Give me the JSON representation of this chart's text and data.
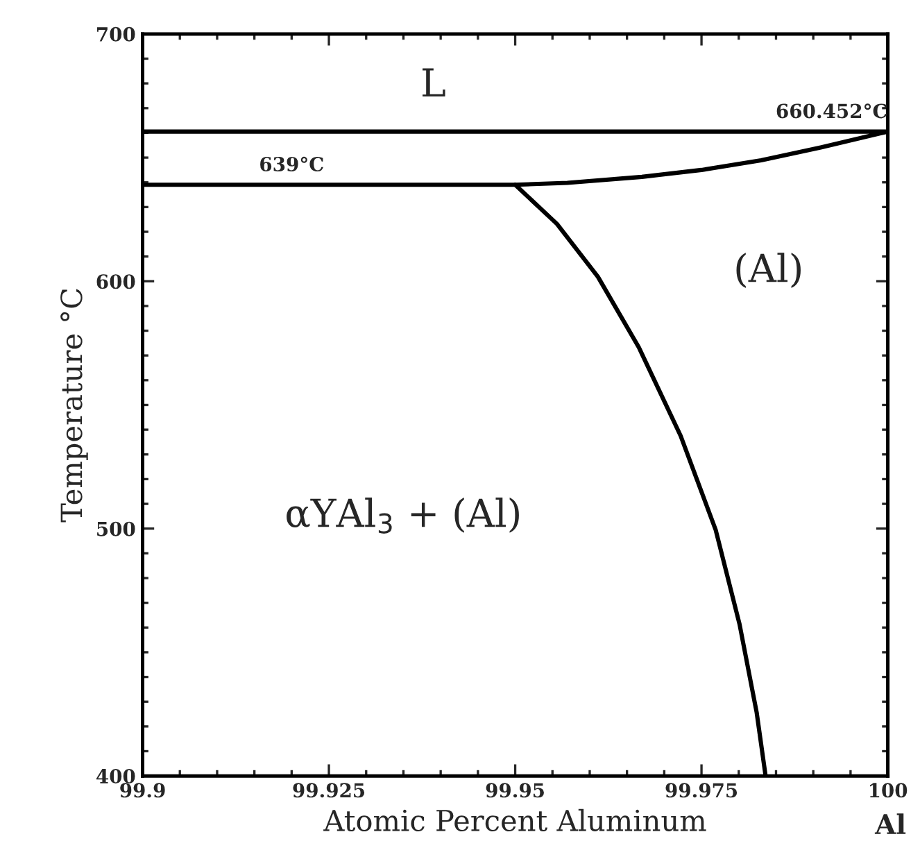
{
  "chart_data": {
    "type": "line",
    "xlabel": "Atomic Percent Aluminum",
    "ylabel": "Temperature °C",
    "xlim": [
      99.9,
      100
    ],
    "ylim": [
      400,
      700
    ],
    "xticks": [
      99.9,
      99.925,
      99.95,
      99.975,
      100
    ],
    "yticks": [
      400,
      500,
      600,
      700
    ],
    "grid": false,
    "marker": "none",
    "line_style": "solid",
    "series": [
      {
        "color": "#000000",
        "x": [
          99.9,
          100,
          99.991,
          99.983,
          99.975,
          99.967,
          99.957,
          99.95,
          99.9
        ],
        "values": [
          660.5,
          660.5,
          654.1,
          648.9,
          645,
          642.2,
          639.8,
          639,
          639
        ]
      },
      {
        "color": "#000000",
        "x": [
          99.95,
          99.9556,
          99.9611,
          99.9666,
          99.9722,
          99.9769,
          99.9801,
          99.9824,
          99.9836
        ],
        "values": [
          639,
          623.2,
          601.8,
          573.2,
          537.5,
          499.5,
          461.4,
          425.7,
          400
        ]
      }
    ],
    "annotations": [
      "L",
      {
        "text": "660.452°C",
        "x": 100,
        "y": 660.5
      },
      {
        "text": "639°C",
        "x": 99.92,
        "y": 639
      },
      "(Al)",
      "αYAl$_{3}$ + (Al)",
      "Al"
    ]
  }
}
